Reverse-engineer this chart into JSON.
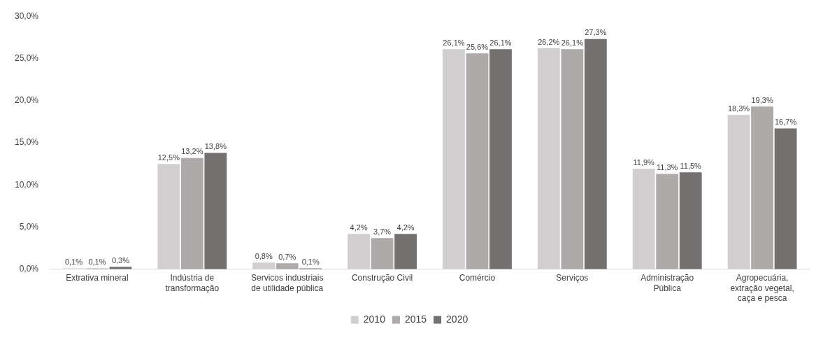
{
  "chart_data": {
    "type": "bar",
    "categories": [
      "Extrativa mineral",
      "Indústria de transformação",
      "Servicos industriais de utilidade pública",
      "Construção Civil",
      "Comércio",
      "Serviços",
      "Administração Pública",
      "Agropecuária, extração vegetal, caça e pesca"
    ],
    "series": [
      {
        "name": "2010",
        "color": "#d0cece",
        "values": [
          0.1,
          12.5,
          0.8,
          4.2,
          26.1,
          26.2,
          11.9,
          18.3
        ],
        "value_labels": [
          "0,1%",
          "12,5%",
          "0,8%",
          "4,2%",
          "26,1%",
          "26,2%",
          "11,9%",
          "18,3%"
        ]
      },
      {
        "name": "2015",
        "color": "#aeaaaa",
        "values": [
          0.1,
          13.2,
          0.7,
          3.7,
          25.6,
          26.1,
          11.3,
          19.3
        ],
        "value_labels": [
          "0,1%",
          "13,2%",
          "0,7%",
          "3,7%",
          "25,6%",
          "26,1%",
          "11,3%",
          "19,3%"
        ]
      },
      {
        "name": "2020",
        "color": "#767171",
        "values": [
          0.3,
          13.8,
          0.1,
          4.2,
          26.1,
          27.3,
          11.5,
          16.7
        ],
        "value_labels": [
          "0,3%",
          "13,8%",
          "0,1%",
          "4,2%",
          "26,1%",
          "27,3%",
          "11,5%",
          "16,7%"
        ]
      }
    ],
    "ylim": [
      0,
      30
    ],
    "yticks": [
      {
        "value": 0,
        "label": "0,0%"
      },
      {
        "value": 5,
        "label": "5,0%"
      },
      {
        "value": 10,
        "label": "10,0%"
      },
      {
        "value": 15,
        "label": "15,0%"
      },
      {
        "value": 20,
        "label": "20,0%"
      },
      {
        "value": 25,
        "label": "25,0%"
      },
      {
        "value": 30,
        "label": "30,0%"
      }
    ],
    "grid": false,
    "legend": "bottom"
  }
}
